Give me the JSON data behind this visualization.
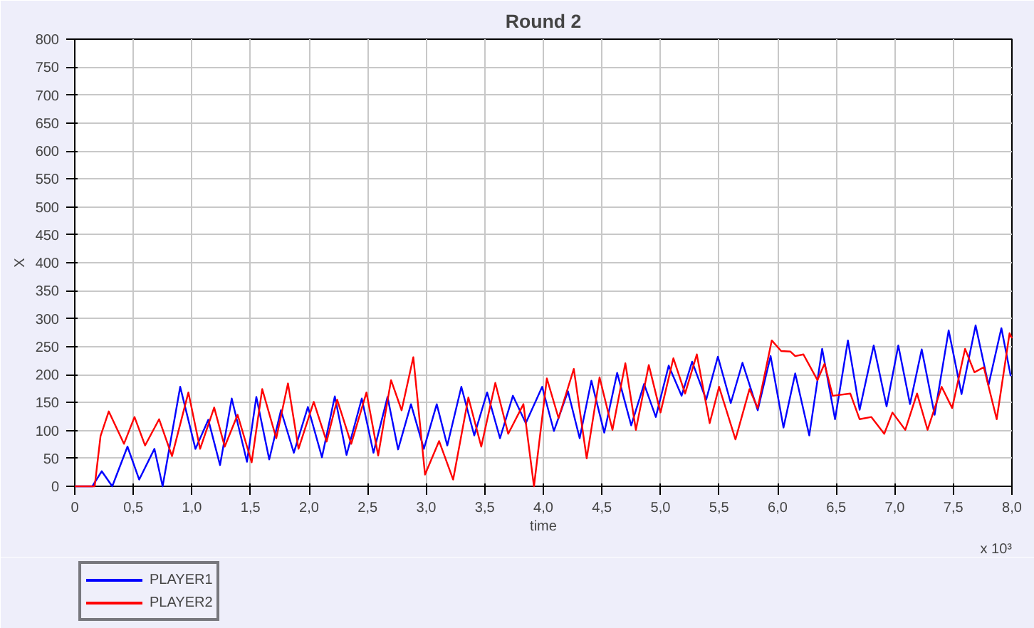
{
  "chart_data": {
    "type": "line",
    "title": "Round 2",
    "xlabel": "time",
    "ylabel": "X",
    "annotations": [
      "x 10³"
    ],
    "xlim": [
      0,
      8
    ],
    "xticks": [
      0,
      {
        "value": 0.5,
        "label": "0,5"
      },
      {
        "value": 1,
        "label": "1,0"
      },
      {
        "value": 1.5,
        "label": "1,5"
      },
      {
        "value": 2,
        "label": "2,0"
      },
      {
        "value": 2.5,
        "label": "2,5"
      },
      {
        "value": 3,
        "label": "3,0"
      },
      {
        "value": 3.5,
        "label": "3,5"
      },
      {
        "value": 4,
        "label": "4,0"
      },
      {
        "value": 4.5,
        "label": "4,5"
      },
      {
        "value": 5,
        "label": "5,0"
      },
      {
        "value": 5.5,
        "label": "5,5"
      },
      {
        "value": 6,
        "label": "6,0"
      },
      {
        "value": 6.5,
        "label": "6,5"
      },
      {
        "value": 7,
        "label": "7,0"
      },
      {
        "value": 7.5,
        "label": "7,5"
      },
      {
        "value": 8,
        "label": "8,0"
      }
    ],
    "ylim": [
      0,
      800
    ],
    "yticks": [
      0,
      50,
      100,
      150,
      200,
      250,
      300,
      350,
      400,
      450,
      500,
      550,
      600,
      650,
      700,
      750,
      800
    ],
    "grid": true,
    "legend": "bottom left",
    "line_style": "solid",
    "series": [
      {
        "name": "PLAYER1",
        "color": "#0000ff",
        "x": [
          0,
          0.15,
          0.23,
          0.32,
          0.45,
          0.55,
          0.68,
          0.75,
          0.9,
          1.03,
          1.14,
          1.24,
          1.34,
          1.47,
          1.55,
          1.66,
          1.76,
          1.87,
          1.99,
          2.11,
          2.22,
          2.32,
          2.45,
          2.55,
          2.67,
          2.76,
          2.87,
          2.98,
          3.09,
          3.18,
          3.3,
          3.41,
          3.52,
          3.63,
          3.74,
          3.85,
          3.99,
          4.09,
          4.21,
          4.31,
          4.41,
          4.52,
          4.63,
          4.75,
          4.86,
          4.96,
          5.07,
          5.18,
          5.27,
          5.39,
          5.49,
          5.6,
          5.7,
          5.83,
          5.94,
          6.05,
          6.15,
          6.27,
          6.38,
          6.49,
          6.6,
          6.7,
          6.82,
          6.93,
          7.03,
          7.13,
          7.23,
          7.34,
          7.46,
          7.57,
          7.69,
          7.8,
          7.91,
          7.99
        ],
        "values": [
          0,
          0,
          27,
          0,
          71,
          12,
          67,
          0,
          178,
          67,
          119,
          38,
          157,
          44,
          160,
          48,
          136,
          60,
          142,
          52,
          161,
          56,
          157,
          60,
          160,
          66,
          147,
          67,
          147,
          73,
          178,
          91,
          168,
          86,
          162,
          113,
          178,
          99,
          170,
          86,
          189,
          96,
          203,
          109,
          183,
          124,
          216,
          162,
          223,
          155,
          232,
          149,
          221,
          136,
          233,
          105,
          202,
          91,
          246,
          120,
          261,
          137,
          252,
          143,
          252,
          147,
          245,
          128,
          279,
          165,
          288,
          181,
          283,
          197
        ]
      },
      {
        "name": "PLAYER2",
        "color": "#ff0000",
        "x": [
          0,
          0.17,
          0.22,
          0.29,
          0.42,
          0.51,
          0.6,
          0.72,
          0.83,
          0.97,
          1.07,
          1.19,
          1.28,
          1.39,
          1.51,
          1.6,
          1.72,
          1.82,
          1.91,
          2.04,
          2.15,
          2.24,
          2.36,
          2.49,
          2.59,
          2.7,
          2.79,
          2.89,
          2.99,
          3.11,
          3.23,
          3.36,
          3.47,
          3.59,
          3.7,
          3.83,
          3.92,
          4.03,
          4.13,
          4.26,
          4.37,
          4.48,
          4.59,
          4.7,
          4.79,
          4.9,
          5.0,
          5.11,
          5.21,
          5.31,
          5.42,
          5.5,
          5.64,
          5.76,
          5.83,
          5.95,
          6.03,
          6.11,
          6.15,
          6.22,
          6.34,
          6.4,
          6.47,
          6.62,
          6.7,
          6.8,
          6.91,
          6.98,
          7.09,
          7.19,
          7.28,
          7.4,
          7.49,
          7.6,
          7.68,
          7.76,
          7.87,
          7.98,
          8.0
        ],
        "values": [
          0,
          0,
          90,
          134,
          76,
          124,
          73,
          120,
          54,
          168,
          67,
          141,
          71,
          128,
          43,
          174,
          86,
          184,
          67,
          151,
          80,
          155,
          76,
          168,
          55,
          190,
          136,
          231,
          21,
          81,
          12,
          159,
          71,
          185,
          94,
          147,
          0,
          193,
          122,
          210,
          50,
          195,
          101,
          220,
          101,
          217,
          132,
          229,
          166,
          236,
          113,
          178,
          84,
          174,
          140,
          261,
          242,
          241,
          233,
          236,
          190,
          219,
          162,
          166,
          120,
          124,
          94,
          132,
          101,
          166,
          101,
          178,
          140,
          246,
          204,
          213,
          120,
          274,
          265
        ]
      }
    ]
  }
}
